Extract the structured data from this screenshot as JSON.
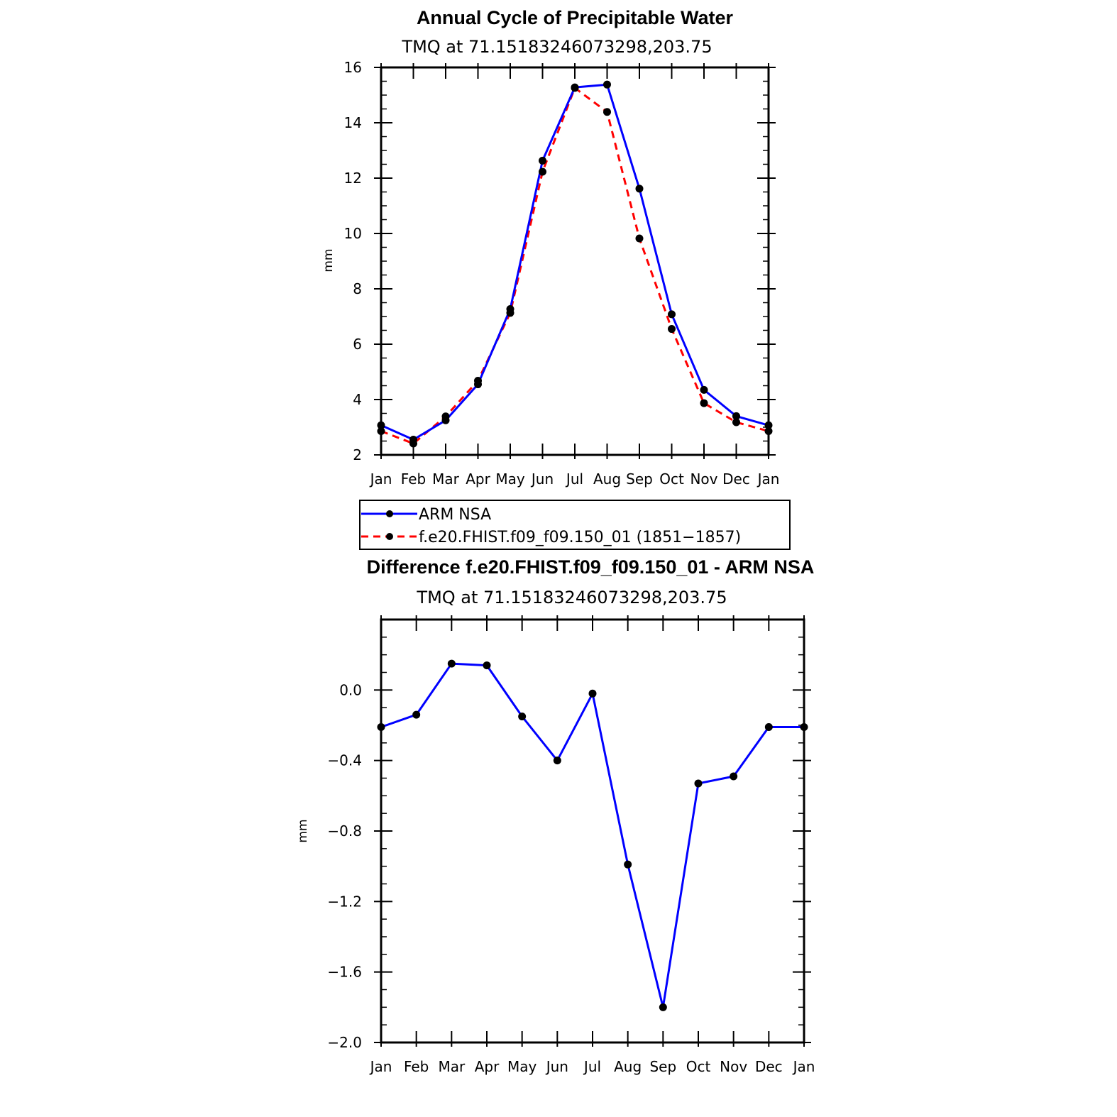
{
  "chart_data": [
    {
      "type": "line",
      "title": "Annual Cycle of Precipitable Water",
      "subtitle": "TMQ at 71.15183246073298,203.75",
      "ylabel": "mm",
      "ylim": [
        2,
        16
      ],
      "yticks": [
        "2",
        "4",
        "6",
        "8",
        "10",
        "12",
        "14",
        "16"
      ],
      "yticks_values": [
        2,
        4,
        6,
        8,
        10,
        12,
        14,
        16
      ],
      "categories": [
        "Jan",
        "Feb",
        "Mar",
        "Apr",
        "May",
        "Jun",
        "Jul",
        "Aug",
        "Sep",
        "Oct",
        "Nov",
        "Dec",
        "Jan"
      ],
      "series": [
        {
          "name": "ARM NSA",
          "color": "#0000ff",
          "dash": "solid",
          "values": [
            3.07,
            2.55,
            3.25,
            4.55,
            7.27,
            12.63,
            15.28,
            15.38,
            11.62,
            7.08,
            4.35,
            3.4,
            3.07
          ]
        },
        {
          "name": "f.e20.FHIST.f09_f09.150_01 (1851−1857)",
          "color": "#ff0000",
          "dash": "dashed",
          "values": [
            2.86,
            2.41,
            3.39,
            4.68,
            7.13,
            12.23,
            15.26,
            14.39,
            9.82,
            6.55,
            3.87,
            3.18,
            2.86
          ]
        }
      ],
      "legend": [
        "ARM NSA",
        "f.e20.FHIST.f09_f09.150_01 (1851−1857)"
      ]
    },
    {
      "type": "line",
      "title": "Difference f.e20.FHIST.f09_f09.150_01 - ARM NSA",
      "subtitle": "TMQ at 71.15183246073298,203.75",
      "ylabel": "mm",
      "ylim": [
        -2.0,
        0.4
      ],
      "yticks": [
        "0.0",
        "−0.4",
        "−0.8",
        "−1.2",
        "−1.6",
        "−2.0"
      ],
      "yticks_values": [
        0.0,
        -0.4,
        -0.8,
        -1.2,
        -1.6,
        -2.0
      ],
      "categories": [
        "Jan",
        "Feb",
        "Mar",
        "Apr",
        "May",
        "Jun",
        "Jul",
        "Aug",
        "Sep",
        "Oct",
        "Nov",
        "Dec",
        "Jan"
      ],
      "series": [
        {
          "name": "Difference",
          "color": "#0000ff",
          "dash": "solid",
          "values": [
            -0.21,
            -0.14,
            0.15,
            0.14,
            -0.15,
            -0.4,
            -0.02,
            -0.99,
            -1.8,
            -0.53,
            -0.49,
            -0.21,
            -0.21
          ]
        }
      ]
    }
  ]
}
